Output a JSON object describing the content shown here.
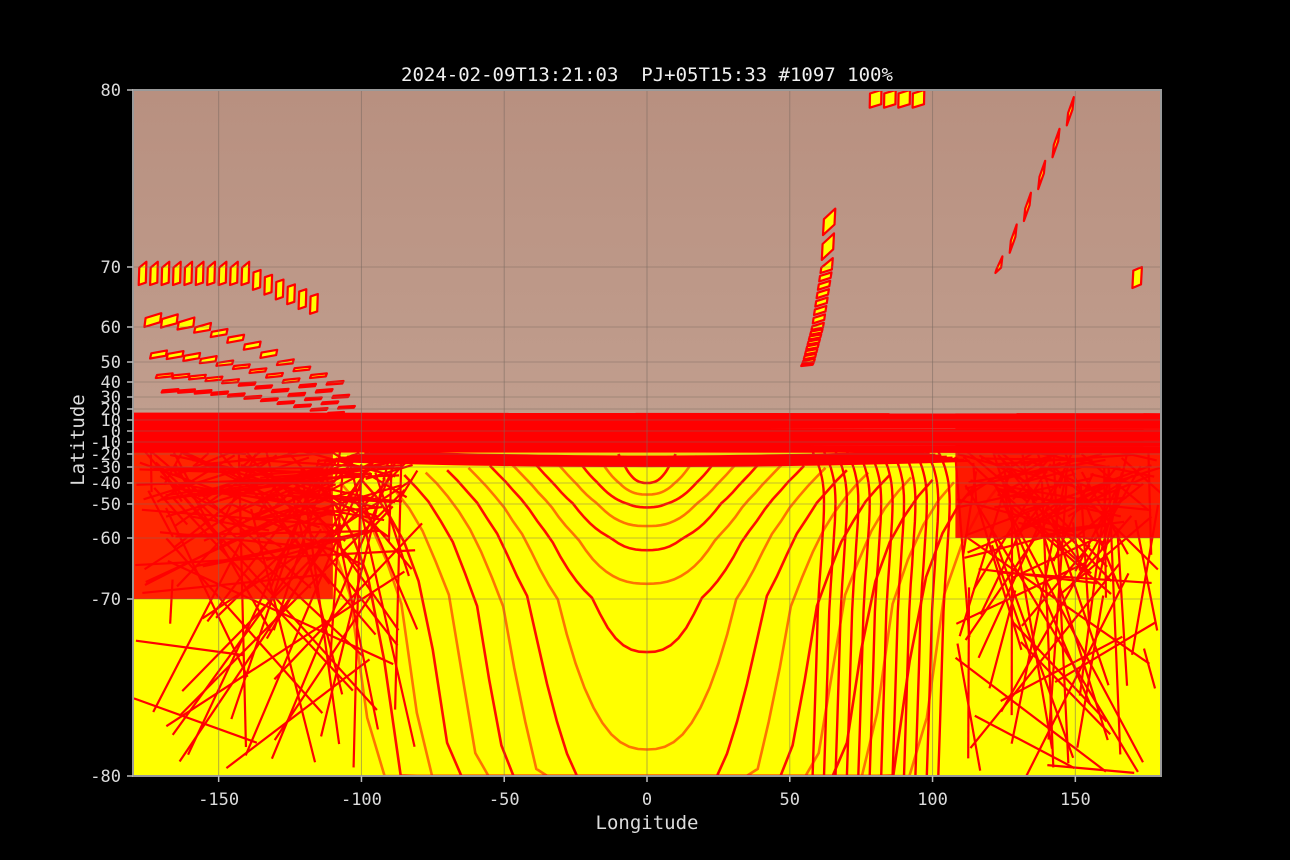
{
  "chart_data": {
    "type": "scatter",
    "title": "2024-02-09T13:21:03  PJ+05T15:33 #1097 100%",
    "xlabel": "Longitude",
    "ylabel": "Latitude",
    "xlim": [
      -180,
      180
    ],
    "ylim": [
      -80,
      80
    ],
    "y_scale": "stretched-equator",
    "grid": true,
    "x_ticks": [
      -150,
      -100,
      -50,
      0,
      50,
      100,
      150
    ],
    "x_tick_labels": [
      "-150",
      "-100",
      "-50",
      "0",
      "50",
      "100",
      "150"
    ],
    "y_ticks": [
      80,
      70,
      60,
      50,
      40,
      30,
      20,
      10,
      0,
      -10,
      -20,
      -30,
      -40,
      -50,
      -60,
      -70,
      -80
    ],
    "y_tick_labels": [
      "80",
      "70",
      "60",
      "50",
      "40",
      "30",
      "20",
      "10",
      "0",
      "-10",
      "-20",
      "-30",
      "-40",
      "-50",
      "-60",
      "-70",
      "-80"
    ],
    "colors": {
      "footprint_edge": "#ff0000",
      "footprint_fill": "#ffff00",
      "frame": "#9a9a9a",
      "background": "#000000"
    },
    "footprint_groups": [
      {
        "name": "",
        "lon_range": [
          -178,
          -113
        ],
        "lat_range": [
          64,
          71
        ]
      },
      {
        "name": "",
        "lon_range": [
          -178,
          -108
        ],
        "lat_range": [
          15,
          64
        ]
      },
      {
        "name": "",
        "lon_range": [
          52,
          68
        ],
        "lat_range": [
          45,
          72
        ]
      },
      {
        "name": "",
        "lon_range": [
          122,
          148
        ],
        "lat_range": [
          69,
          80
        ]
      },
      {
        "name": "",
        "lon_range": [
          170,
          178
        ],
        "lat_range": [
          66,
          71
        ]
      },
      {
        "name": "",
        "lon_range": [
          78,
          98
        ],
        "lat_range": [
          78,
          80
        ]
      },
      {
        "name": "",
        "lon_range": [
          -180,
          180
        ],
        "lat_range": [
          -80,
          16
        ]
      }
    ]
  }
}
